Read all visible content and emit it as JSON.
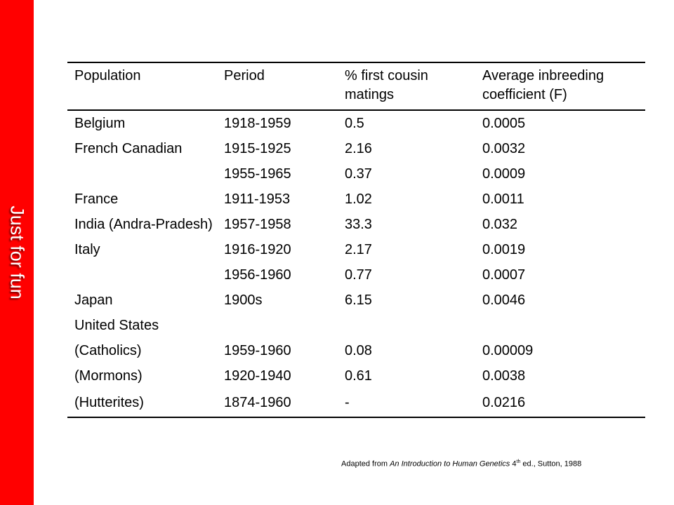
{
  "sidebar": {
    "label": "Just for fun",
    "color": "#ff0000"
  },
  "table": {
    "headers": [
      "Population",
      "Period",
      "% first cousin matings",
      "Average inbreeding coefficient (F)"
    ],
    "rows": [
      [
        "Belgium",
        "1918-1959",
        "0.5",
        "0.0005"
      ],
      [
        "French Canadian",
        "1915-1925",
        "2.16",
        "0.0032"
      ],
      [
        "",
        "1955-1965",
        "0.37",
        "0.0009"
      ],
      [
        "France",
        "1911-1953",
        "1.02",
        "0.0011"
      ],
      [
        "India (Andra-Pradesh)",
        "1957-1958",
        "33.3",
        "0.032"
      ],
      [
        "Italy",
        "1916-1920",
        "2.17",
        "0.0019"
      ],
      [
        "",
        "1956-1960",
        "0.77",
        "0.0007"
      ],
      [
        "Japan",
        "1900s",
        "6.15",
        "0.0046"
      ],
      [
        "United States",
        "",
        "",
        ""
      ],
      [
        "(Catholics)",
        "1959-1960",
        "0.08",
        "0.00009"
      ],
      [
        "(Mormons)",
        "1920-1940",
        "0.61",
        "0.0038"
      ],
      [
        "(Hutterites)",
        "1874-1960",
        "-",
        "0.0216"
      ]
    ]
  },
  "citation": {
    "prefix": "Adapted from ",
    "book_title": "An Introduction to Human Genetics",
    "edition_number": " 4",
    "edition_suffix": "th",
    "rest": " ed., Sutton, 1988"
  }
}
